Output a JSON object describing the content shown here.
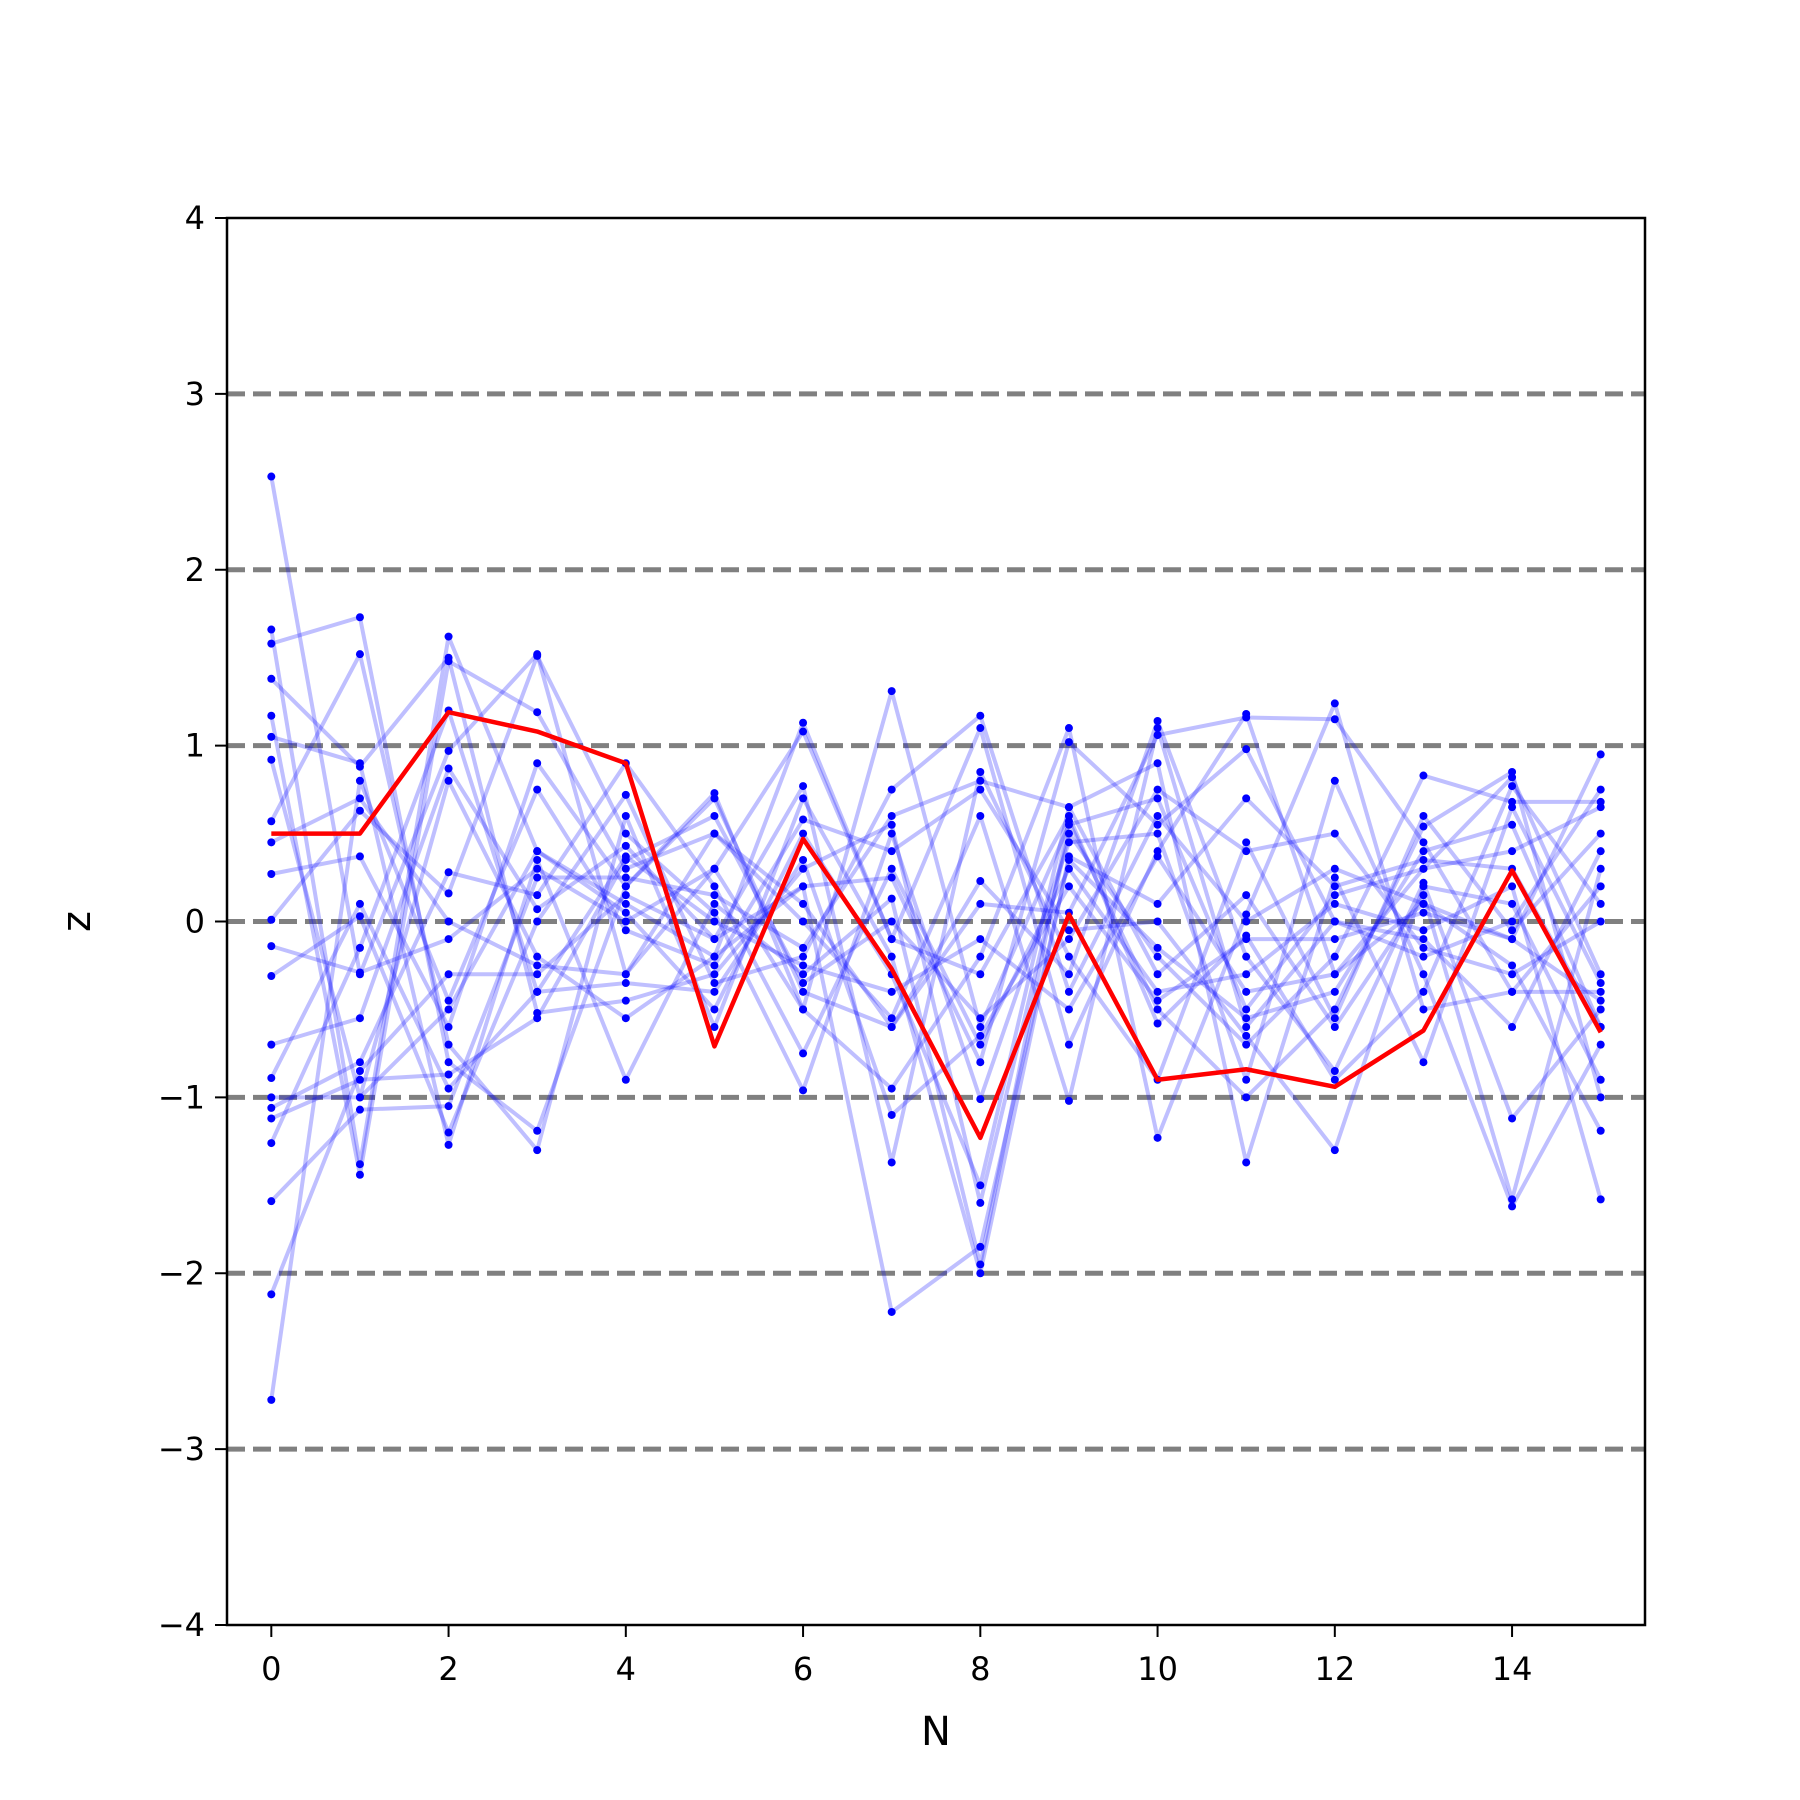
{
  "chart_data": {
    "type": "line",
    "xlabel": "N",
    "ylabel": "z",
    "xlim": [
      -0.5,
      15.5
    ],
    "ylim": [
      -4,
      4
    ],
    "x": [
      0,
      1,
      2,
      3,
      4,
      5,
      6,
      7,
      8,
      9,
      10,
      11,
      12,
      13,
      14,
      15
    ],
    "xticks": [
      0,
      2,
      4,
      6,
      8,
      10,
      12,
      14
    ],
    "xtick_labels": [
      "0",
      "2",
      "4",
      "6",
      "8",
      "10",
      "12",
      "14"
    ],
    "yticks": [
      -4,
      -3,
      -2,
      -1,
      0,
      1,
      2,
      3,
      4
    ],
    "ytick_labels": [
      "−4",
      "−3",
      "−2",
      "−1",
      "0",
      "1",
      "2",
      "3",
      "4"
    ],
    "reference_lines": [
      -3,
      -2,
      -1,
      0,
      1,
      2,
      3
    ],
    "colors": {
      "samples": "#0000ff",
      "highlight": "#ff0000",
      "reference": "#808080"
    },
    "grid": false,
    "highlight_series": {
      "values": [
        0.5,
        0.5,
        1.19,
        1.08,
        0.9,
        -0.71,
        0.47,
        -0.27,
        -1.23,
        0.04,
        -0.9,
        -0.84,
        -0.94,
        -0.62,
        0.29,
        -0.63
      ]
    },
    "sample_series": [
      {
        "values": [
          2.53,
          -0.3,
          0.97,
          1.52,
          -0.3,
          0.3,
          -0.5,
          1.31,
          -0.6,
          0.55,
          0.7,
          -0.5,
          0.15,
          0.3,
          0.82,
          -0.3
        ]
      },
      {
        "values": [
          1.66,
          -1.38,
          1.62,
          0.4,
          0.1,
          -0.2,
          1.13,
          -0.1,
          1.1,
          -0.7,
          0.4,
          1.18,
          -0.3,
          0.1,
          -0.1,
          0.95
        ]
      },
      {
        "values": [
          1.58,
          1.73,
          -0.8,
          -1.19,
          0.2,
          0.73,
          -0.5,
          -0.95,
          -0.2,
          1.1,
          -1.23,
          0.04,
          1.24,
          -0.5,
          -0.4,
          0.2
        ]
      },
      {
        "values": [
          1.38,
          0.88,
          1.5,
          -0.52,
          -0.45,
          -0.3,
          0.3,
          0.55,
          -1.6,
          0.5,
          -0.2,
          -0.7,
          -0.2,
          0.83,
          0.68,
          0.68
        ]
      },
      {
        "values": [
          1.17,
          -1.44,
          1.48,
          1.19,
          0.3,
          0.5,
          0.1,
          -0.6,
          0.23,
          -0.3,
          1.14,
          -0.2,
          -0.85,
          0.22,
          -1.12,
          -0.5
        ]
      },
      {
        "values": [
          1.05,
          0.9,
          -1.27,
          0.35,
          -0.9,
          0.1,
          -0.3,
          0.13,
          -1.95,
          0.57,
          -0.5,
          -1.0,
          -0.5,
          0.54,
          0.85,
          -1.0
        ]
      },
      {
        "values": [
          0.92,
          -1.0,
          0.8,
          -0.2,
          -0.55,
          -0.2,
          0.2,
          0.25,
          -0.8,
          1.02,
          0.55,
          0.98,
          0.0,
          -0.1,
          -0.6,
          0.4
        ]
      },
      {
        "values": [
          0.57,
          1.52,
          -0.7,
          -1.3,
          0.6,
          -0.6,
          0.7,
          -0.2,
          -2.0,
          0.37,
          0.1,
          0.7,
          0.2,
          0.35,
          0.3,
          -0.6
        ]
      },
      {
        "values": [
          0.45,
          0.7,
          0.0,
          -0.25,
          -0.3,
          0.5,
          0.0,
          -0.55,
          0.6,
          -1.02,
          1.1,
          -0.6,
          0.0,
          -0.2,
          0.0,
          0.75
        ]
      },
      {
        "values": [
          0.27,
          0.37,
          -0.6,
          0.9,
          0.2,
          0.7,
          -0.4,
          -0.6,
          0.1,
          0.05,
          1.06,
          1.16,
          1.15,
          0.45,
          -0.4,
          -0.4
        ]
      },
      {
        "values": [
          0.01,
          0.63,
          0.16,
          1.51,
          0.5,
          0.05,
          -0.96,
          0.5,
          -1.01,
          0.45,
          0.5,
          -0.9,
          0.8,
          -0.3,
          -1.62,
          -0.7
        ]
      },
      {
        "values": [
          -0.14,
          -0.29,
          -0.1,
          0.3,
          0.0,
          0.3,
          1.08,
          -0.1,
          -0.3,
          0.6,
          -0.58,
          -0.08,
          -0.9,
          -0.4,
          0.77,
          0.1
        ]
      },
      {
        "values": [
          -0.31,
          0.03,
          -1.2,
          0.0,
          0.72,
          -0.35,
          -0.2,
          0.75,
          1.17,
          -0.4,
          0.6,
          0.0,
          0.3,
          0.1,
          -0.25,
          -1.19
        ]
      },
      {
        "values": [
          -0.7,
          -0.55,
          0.87,
          0.07,
          0.43,
          -0.1,
          0.77,
          -1.37,
          0.85,
          -0.2,
          -0.9,
          0.45,
          -0.55,
          0.6,
          -0.05,
          0.5
        ]
      },
      {
        "values": [
          -0.89,
          0.1,
          -0.95,
          -0.4,
          0.37,
          0.0,
          -0.25,
          -0.4,
          -0.1,
          -0.5,
          0.37,
          -0.4,
          -0.3,
          0.3,
          0.4,
          0.65
        ]
      },
      {
        "values": [
          -1.0,
          -1.0,
          -0.5,
          0.4,
          0.05,
          -0.5,
          0.5,
          -0.3,
          -1.5,
          0.65,
          -0.3,
          0.15,
          -0.6,
          0.15,
          -1.58,
          0.3
        ]
      },
      {
        "values": [
          -1.06,
          -0.8,
          0.28,
          0.15,
          0.9,
          0.2,
          -0.75,
          0.3,
          -0.7,
          0.3,
          -0.4,
          -0.3,
          0.1,
          -0.05,
          0.2,
          -1.58
        ]
      },
      {
        "values": [
          -1.12,
          -0.9,
          -0.87,
          -0.55,
          0.35,
          0.6,
          -0.35,
          0.0,
          -0.55,
          -0.1,
          0.75,
          0.4,
          0.5,
          -0.15,
          -0.3,
          0.0
        ]
      },
      {
        "values": [
          -1.26,
          -0.15,
          1.2,
          -0.4,
          -0.35,
          -0.4,
          0.35,
          -1.1,
          -0.65,
          0.2,
          -0.45,
          -0.1,
          -0.1,
          0.05,
          -0.1,
          -0.45
        ]
      },
      {
        "values": [
          -1.59,
          -1.07,
          -1.05,
          0.25,
          0.25,
          0.15,
          -0.15,
          0.6,
          0.8,
          0.65,
          0.9,
          -1.37,
          0.25,
          -0.8,
          0.65,
          -0.35
        ]
      },
      {
        "values": [
          -2.12,
          -0.85,
          -0.3,
          -0.3,
          0.15,
          -0.1,
          0.2,
          -2.22,
          -1.85,
          0.35,
          -0.15,
          -0.55,
          -0.4,
          0.4,
          0.55,
          -0.6
        ]
      },
      {
        "values": [
          -2.72,
          0.8,
          -0.45,
          0.75,
          -0.05,
          -0.25,
          0.58,
          0.4,
          0.75,
          -0.05,
          0.0,
          -0.65,
          -1.3,
          0.2,
          0.1,
          -0.9
        ]
      }
    ]
  }
}
